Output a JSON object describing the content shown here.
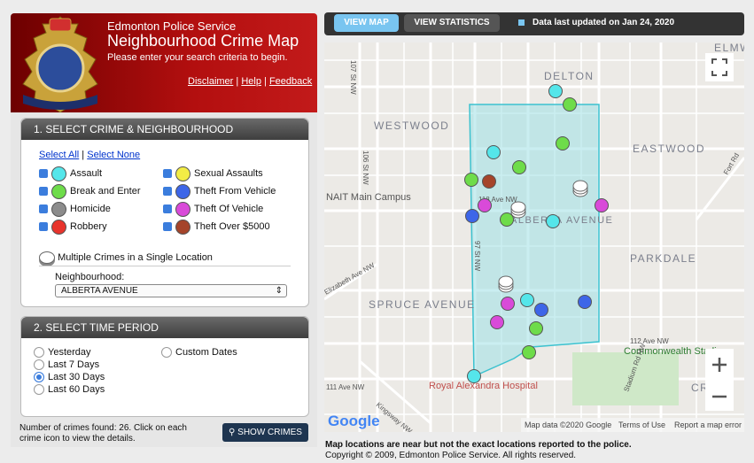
{
  "header": {
    "org": "Edmonton Police Service",
    "title": "Neighbourhood Crime Map",
    "subtitle": "Please enter your search criteria to begin.",
    "links": [
      "Disclaimer",
      "Help",
      "Feedback"
    ]
  },
  "section1": {
    "title": "1. SELECT CRIME & NEIGHBOURHOOD",
    "select_all": "Select All",
    "select_none": "Select None",
    "crimes": [
      {
        "label": "Assault",
        "color": "#55e6ea"
      },
      {
        "label": "Break and Enter",
        "color": "#6edc4a"
      },
      {
        "label": "Homicide",
        "color": "#8c8c8c"
      },
      {
        "label": "Robbery",
        "color": "#e8342c"
      },
      {
        "label": "Sexual Assaults",
        "color": "#f2ec45"
      },
      {
        "label": "Theft From Vehicle",
        "color": "#3d66e8"
      },
      {
        "label": "Theft Of Vehicle",
        "color": "#d94ad9"
      },
      {
        "label": "Theft Over $5000",
        "color": "#a5442a"
      }
    ],
    "multiple": "Multiple Crimes in a Single Location",
    "neighbourhood_label": "Neighbourhood:",
    "neighbourhood": "ALBERTA AVENUE"
  },
  "section2": {
    "title": "2. SELECT TIME PERIOD",
    "options": [
      "Yesterday",
      "Last 7 Days",
      "Last 30 Days",
      "Last 60 Days"
    ],
    "custom": "Custom Dates"
  },
  "footer": {
    "count_text": "Number of crimes found: 26. Click on each crime icon to view the details.",
    "button": "SHOW CRIMES"
  },
  "tabs": [
    "VIEW MAP",
    "VIEW STATISTICS"
  ],
  "updated": "Data last updated on Jan 24, 2020",
  "map": {
    "labels": [
      "DELTON",
      "WESTWOOD",
      "EASTWOOD",
      "NAIT Main Campus",
      "118 Ave NW",
      "ALBERTA AVENUE",
      "PARKDALE",
      "SPRUCE AVENUE",
      "112 Ave NW",
      "Commonwealth Stadium",
      "111 Ave NW",
      "Royal Alexandra Hospital",
      "CROM",
      "Kingsway NW",
      "Stadium Rd NW",
      "97 St NW",
      "106 St NW",
      "107 St NW",
      "Elizabeth Ave NW",
      "Fort Rd",
      "ELMW"
    ],
    "google": "Google",
    "attribution": "Map data ©2020 Google",
    "terms": "Terms of Use",
    "report": "Report a map error"
  },
  "notes": [
    "Map locations are near but not the exact locations reported to the police.",
    "Copyright © 2009, Edmonton Police Service. All rights reserved."
  ]
}
